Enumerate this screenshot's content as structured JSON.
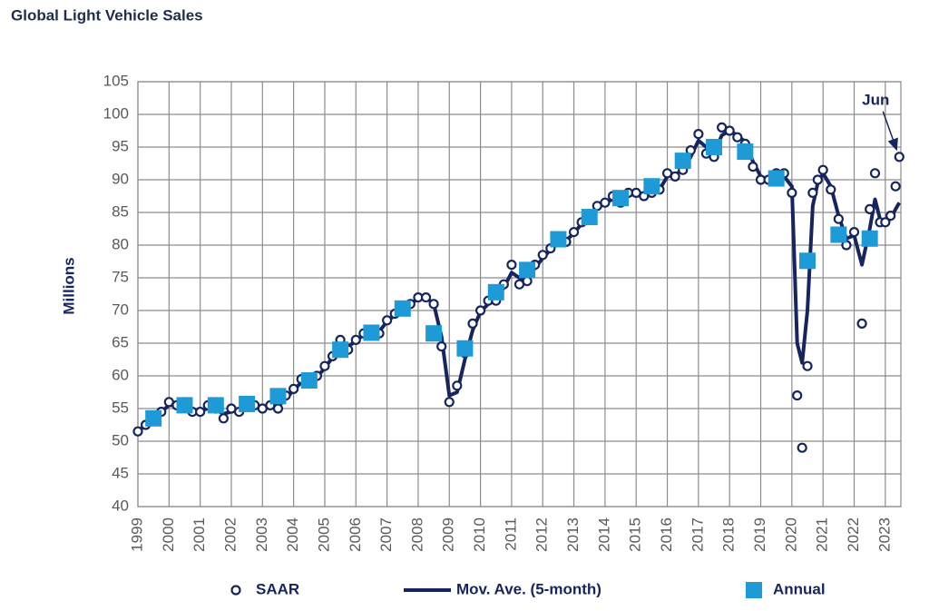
{
  "chart_data": {
    "type": "line",
    "title": "Global Light Vehicle Sales",
    "y_label": "Millions",
    "annotation": "Jun",
    "xlim": [
      1999,
      2023.5
    ],
    "xticks": [
      1999,
      2000,
      2001,
      2002,
      2003,
      2004,
      2005,
      2006,
      2007,
      2008,
      2009,
      2010,
      2011,
      2012,
      2013,
      2014,
      2015,
      2016,
      2017,
      2018,
      2019,
      2020,
      2021,
      2022,
      2023
    ],
    "ylim": [
      40,
      105
    ],
    "yticks": [
      40,
      45,
      50,
      55,
      60,
      65,
      70,
      75,
      80,
      85,
      90,
      95,
      100,
      105
    ],
    "grid": true,
    "x": [
      1999,
      1999.25,
      1999.5,
      1999.75,
      2000,
      2000.25,
      2000.5,
      2000.75,
      2001,
      2001.25,
      2001.5,
      2001.75,
      2002,
      2002.25,
      2002.5,
      2002.75,
      2003,
      2003.25,
      2003.5,
      2003.75,
      2004,
      2004.25,
      2004.5,
      2004.75,
      2005,
      2005.25,
      2005.5,
      2005.75,
      2006,
      2006.25,
      2006.5,
      2006.75,
      2007,
      2007.25,
      2007.5,
      2007.75,
      2008,
      2008.25,
      2008.5,
      2008.75,
      2009,
      2009.25,
      2009.5,
      2009.75,
      2010,
      2010.25,
      2010.5,
      2010.75,
      2011,
      2011.25,
      2011.5,
      2011.75,
      2012,
      2012.25,
      2012.5,
      2012.75,
      2013,
      2013.25,
      2013.5,
      2013.75,
      2014,
      2014.25,
      2014.5,
      2014.75,
      2015,
      2015.25,
      2015.5,
      2015.75,
      2016,
      2016.25,
      2016.5,
      2016.75,
      2017,
      2017.25,
      2017.5,
      2017.75,
      2018,
      2018.25,
      2018.5,
      2018.75,
      2019,
      2019.25,
      2019.5,
      2019.75,
      2020,
      2020.17,
      2020.33,
      2020.5,
      2020.67,
      2020.83,
      2021,
      2021.25,
      2021.5,
      2021.75,
      2022,
      2022.25,
      2022.5,
      2022.67,
      2022.83,
      2023,
      2023.17,
      2023.33,
      2023.45
    ],
    "series": [
      {
        "name": "SAAR",
        "style": "circle",
        "color": "#17255f",
        "values": [
          51.5,
          52.5,
          53.5,
          54.5,
          56,
          55.5,
          55.5,
          54.5,
          54.5,
          55.5,
          55,
          53.5,
          55,
          54.5,
          56,
          55.5,
          55,
          55.5,
          55,
          57,
          58,
          59.5,
          59,
          60,
          61.5,
          63,
          65.5,
          64,
          65.5,
          66.5,
          67,
          66.5,
          68.5,
          69.5,
          70.5,
          71,
          72,
          72,
          71,
          64.5,
          56,
          58.5,
          63.5,
          68,
          70,
          71.5,
          71.5,
          74,
          77,
          74,
          74.5,
          77,
          78.5,
          79.5,
          80.5,
          80.5,
          82,
          83.5,
          84.5,
          86,
          86.5,
          87.5,
          86.5,
          88,
          88,
          87.5,
          88,
          88.5,
          91,
          90.5,
          91.5,
          94.5,
          97,
          94,
          93.5,
          98,
          97.5,
          96.5,
          95.5,
          92,
          90,
          90,
          91,
          91,
          88,
          57,
          49,
          61.5,
          88,
          90,
          91.5,
          88.5,
          84,
          80,
          82,
          68,
          85.5,
          91,
          83.5,
          83.5,
          84.5,
          89,
          93.5
        ]
      },
      {
        "name": "Mov. Ave. (5-month)",
        "style": "line",
        "color": "#17255f",
        "values": [
          51.5,
          52.5,
          53.5,
          54.5,
          55.5,
          55.5,
          55.2,
          54.8,
          54.7,
          55,
          54.8,
          54.2,
          54.5,
          54.8,
          55.3,
          55.3,
          55.2,
          55.3,
          55.3,
          56.5,
          57.8,
          59,
          59.2,
          59.8,
          61.2,
          62.8,
          64.5,
          64.5,
          65.3,
          66.3,
          66.8,
          66.8,
          68.3,
          69.3,
          70.3,
          71,
          71.8,
          72,
          71,
          66,
          57,
          57.5,
          62.5,
          67,
          69.8,
          71,
          71.5,
          73.5,
          75.8,
          75,
          74.8,
          76.5,
          78,
          79.3,
          80.3,
          80.7,
          81.8,
          83.3,
          84.5,
          85.8,
          86.5,
          87,
          87,
          87.5,
          88,
          87.8,
          88,
          88.5,
          90.5,
          90.8,
          91.5,
          93.5,
          96,
          95,
          94,
          96.8,
          97.5,
          96.8,
          95.8,
          92.8,
          90.5,
          90,
          90.5,
          90.5,
          89,
          65,
          62,
          70,
          86,
          89.5,
          91,
          89,
          84.5,
          81,
          81.5,
          77,
          82.5,
          87,
          84,
          83.5,
          84,
          85.5,
          86.5
        ]
      },
      {
        "name": "Annual",
        "style": "square",
        "color": "#1e9ad6",
        "x": [
          1999.5,
          2000.5,
          2001.5,
          2002.5,
          2003.5,
          2004.5,
          2005.5,
          2006.5,
          2007.5,
          2008.5,
          2009.5,
          2010.5,
          2011.5,
          2012.5,
          2013.5,
          2014.5,
          2015.5,
          2016.5,
          2017.5,
          2018.5,
          2019.5,
          2020.5,
          2021.5,
          2022.5
        ],
        "values": [
          53.5,
          55.5,
          55.5,
          55.7,
          56.9,
          59.3,
          64,
          66.6,
          70.3,
          66.5,
          64.2,
          72.8,
          76.2,
          80.9,
          84.3,
          87.2,
          89,
          92.9,
          95,
          94.3,
          90.2,
          77.6,
          81.6,
          81
        ]
      }
    ]
  }
}
